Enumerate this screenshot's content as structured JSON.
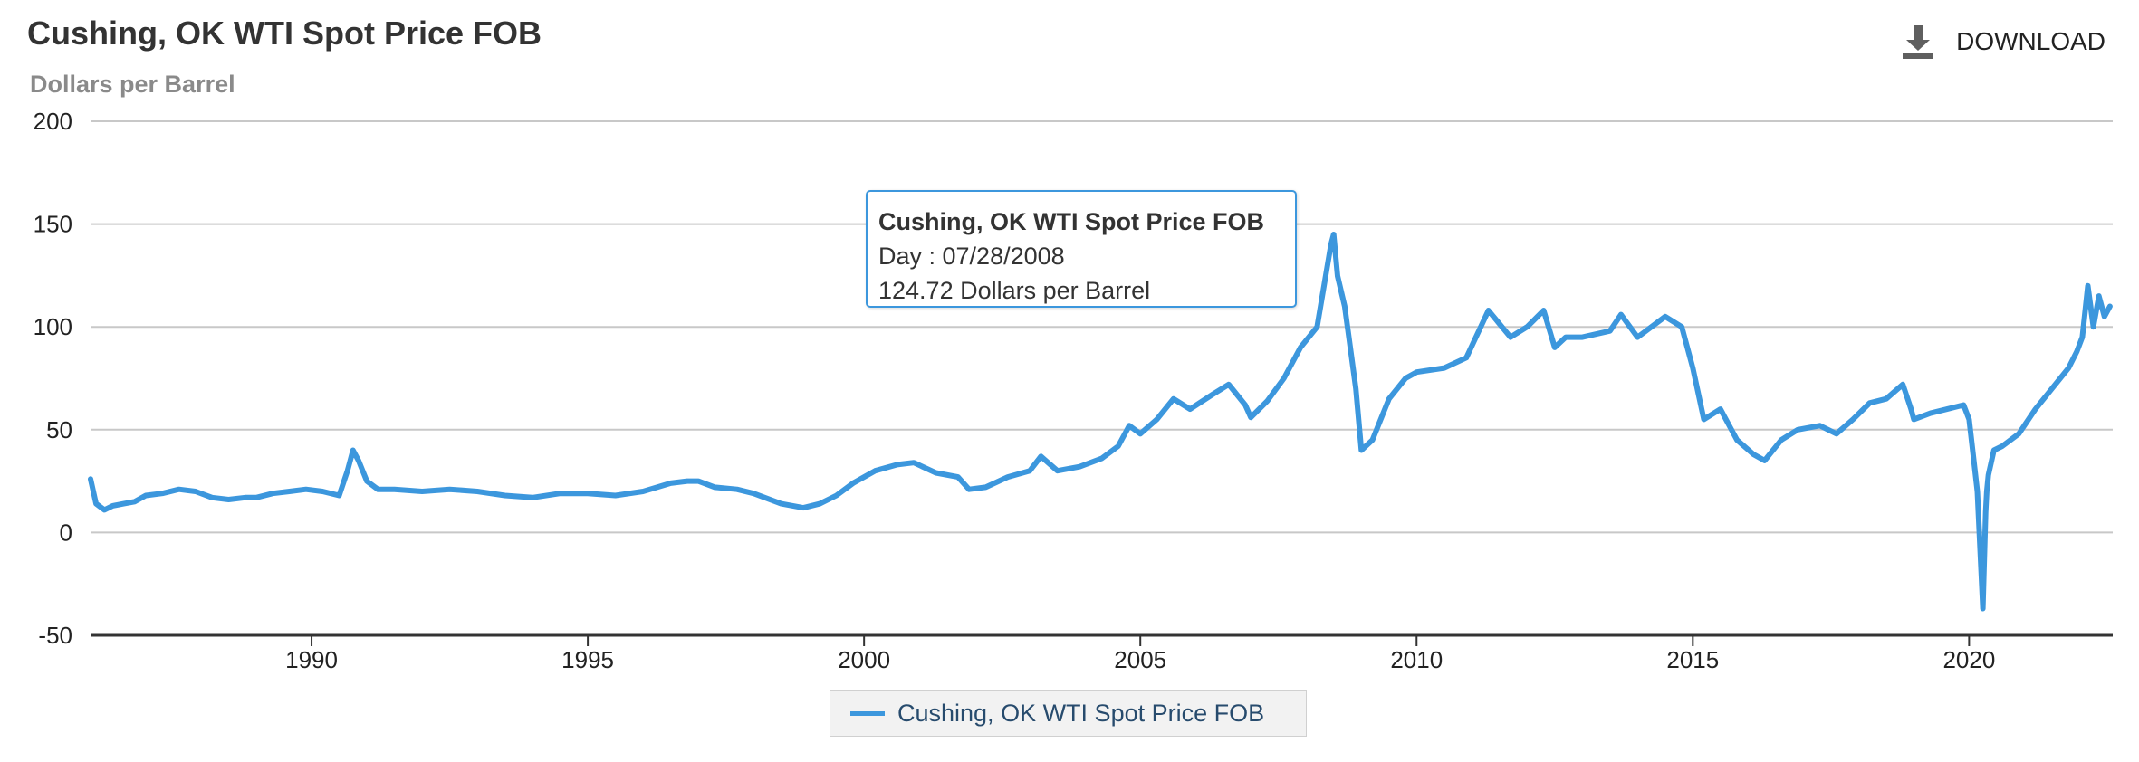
{
  "header": {
    "title": "Cushing, OK WTI Spot Price FOB",
    "subtitle": "Dollars per Barrel",
    "download_label": "DOWNLOAD",
    "download_icon": "download-icon"
  },
  "tooltip": {
    "title": "Cushing, OK WTI Spot Price FOB",
    "day_line": "Day : 07/28/2008",
    "value_line": "124.72 Dollars per Barrel"
  },
  "legend": {
    "label": "Cushing, OK WTI Spot Price FOB"
  },
  "chart_data": {
    "type": "line",
    "title": "Cushing, OK WTI Spot Price FOB",
    "ylabel": "Dollars per Barrel",
    "xlabel": "",
    "xlim": [
      1986.0,
      2022.6
    ],
    "ylim": [
      -50,
      200
    ],
    "y_ticks": [
      -50,
      0,
      50,
      100,
      150,
      200
    ],
    "y_tick_labels": [
      "-50",
      "0",
      "50",
      "100",
      "150",
      "200"
    ],
    "x_ticks": [
      1990,
      1995,
      2000,
      2005,
      2010,
      2015,
      2020
    ],
    "x_tick_labels": [
      "1990",
      "1995",
      "2000",
      "2005",
      "2010",
      "2015",
      "2020"
    ],
    "grid": "horizontal",
    "legend_position": "bottom-center",
    "color": "#3c97dd",
    "highlight": {
      "x": 2008.57,
      "y": 124.72
    },
    "series": [
      {
        "name": "Cushing, OK WTI Spot Price FOB",
        "x": [
          1986.0,
          1986.1,
          1986.25,
          1986.4,
          1986.6,
          1986.8,
          1987.0,
          1987.3,
          1987.6,
          1987.9,
          1988.2,
          1988.5,
          1988.8,
          1989.0,
          1989.3,
          1989.6,
          1989.9,
          1990.2,
          1990.5,
          1990.65,
          1990.75,
          1990.85,
          1991.0,
          1991.2,
          1991.5,
          1992.0,
          1992.5,
          1993.0,
          1993.5,
          1994.0,
          1994.5,
          1995.0,
          1995.5,
          1996.0,
          1996.5,
          1996.8,
          1997.0,
          1997.3,
          1997.7,
          1998.0,
          1998.5,
          1998.9,
          1999.2,
          1999.5,
          1999.8,
          2000.2,
          2000.6,
          2000.9,
          2001.3,
          2001.7,
          2001.9,
          2002.2,
          2002.6,
          2003.0,
          2003.2,
          2003.5,
          2003.9,
          2004.3,
          2004.6,
          2004.8,
          2005.0,
          2005.3,
          2005.6,
          2005.9,
          2006.3,
          2006.6,
          2006.9,
          2007.0,
          2007.3,
          2007.6,
          2007.9,
          2008.2,
          2008.45,
          2008.5,
          2008.57,
          2008.7,
          2008.9,
          2009.0,
          2009.2,
          2009.5,
          2009.8,
          2010.0,
          2010.5,
          2010.9,
          2011.3,
          2011.7,
          2012.0,
          2012.3,
          2012.5,
          2012.7,
          2013.0,
          2013.5,
          2013.7,
          2014.0,
          2014.5,
          2014.8,
          2015.0,
          2015.2,
          2015.5,
          2015.8,
          2016.1,
          2016.3,
          2016.6,
          2016.9,
          2017.3,
          2017.6,
          2017.9,
          2018.2,
          2018.5,
          2018.8,
          2018.95,
          2019.0,
          2019.3,
          2019.6,
          2019.9,
          2020.0,
          2020.15,
          2020.25,
          2020.3,
          2020.32,
          2020.35,
          2020.45,
          2020.6,
          2020.9,
          2021.2,
          2021.5,
          2021.8,
          2021.95,
          2022.05,
          2022.15,
          2022.25,
          2022.35,
          2022.45,
          2022.55
        ],
        "y": [
          26,
          14,
          11,
          13,
          14,
          15,
          18,
          19,
          21,
          20,
          17,
          16,
          17,
          17,
          19,
          20,
          21,
          20,
          18,
          30,
          40,
          35,
          25,
          21,
          21,
          20,
          21,
          20,
          18,
          17,
          19,
          19,
          18,
          20,
          24,
          25,
          25,
          22,
          21,
          19,
          14,
          12,
          14,
          18,
          24,
          30,
          33,
          34,
          29,
          27,
          21,
          22,
          27,
          30,
          37,
          30,
          32,
          36,
          42,
          52,
          48,
          55,
          65,
          60,
          67,
          72,
          62,
          56,
          64,
          75,
          90,
          100,
          140,
          145,
          124.72,
          110,
          70,
          40,
          45,
          65,
          75,
          78,
          80,
          85,
          108,
          95,
          100,
          108,
          90,
          95,
          95,
          98,
          106,
          95,
          105,
          100,
          80,
          55,
          60,
          45,
          38,
          35,
          45,
          50,
          52,
          48,
          55,
          63,
          65,
          72,
          60,
          55,
          58,
          60,
          62,
          55,
          20,
          -37,
          10,
          20,
          28,
          40,
          42,
          48,
          60,
          70,
          80,
          88,
          95,
          120,
          100,
          115,
          105,
          110
        ]
      }
    ]
  }
}
